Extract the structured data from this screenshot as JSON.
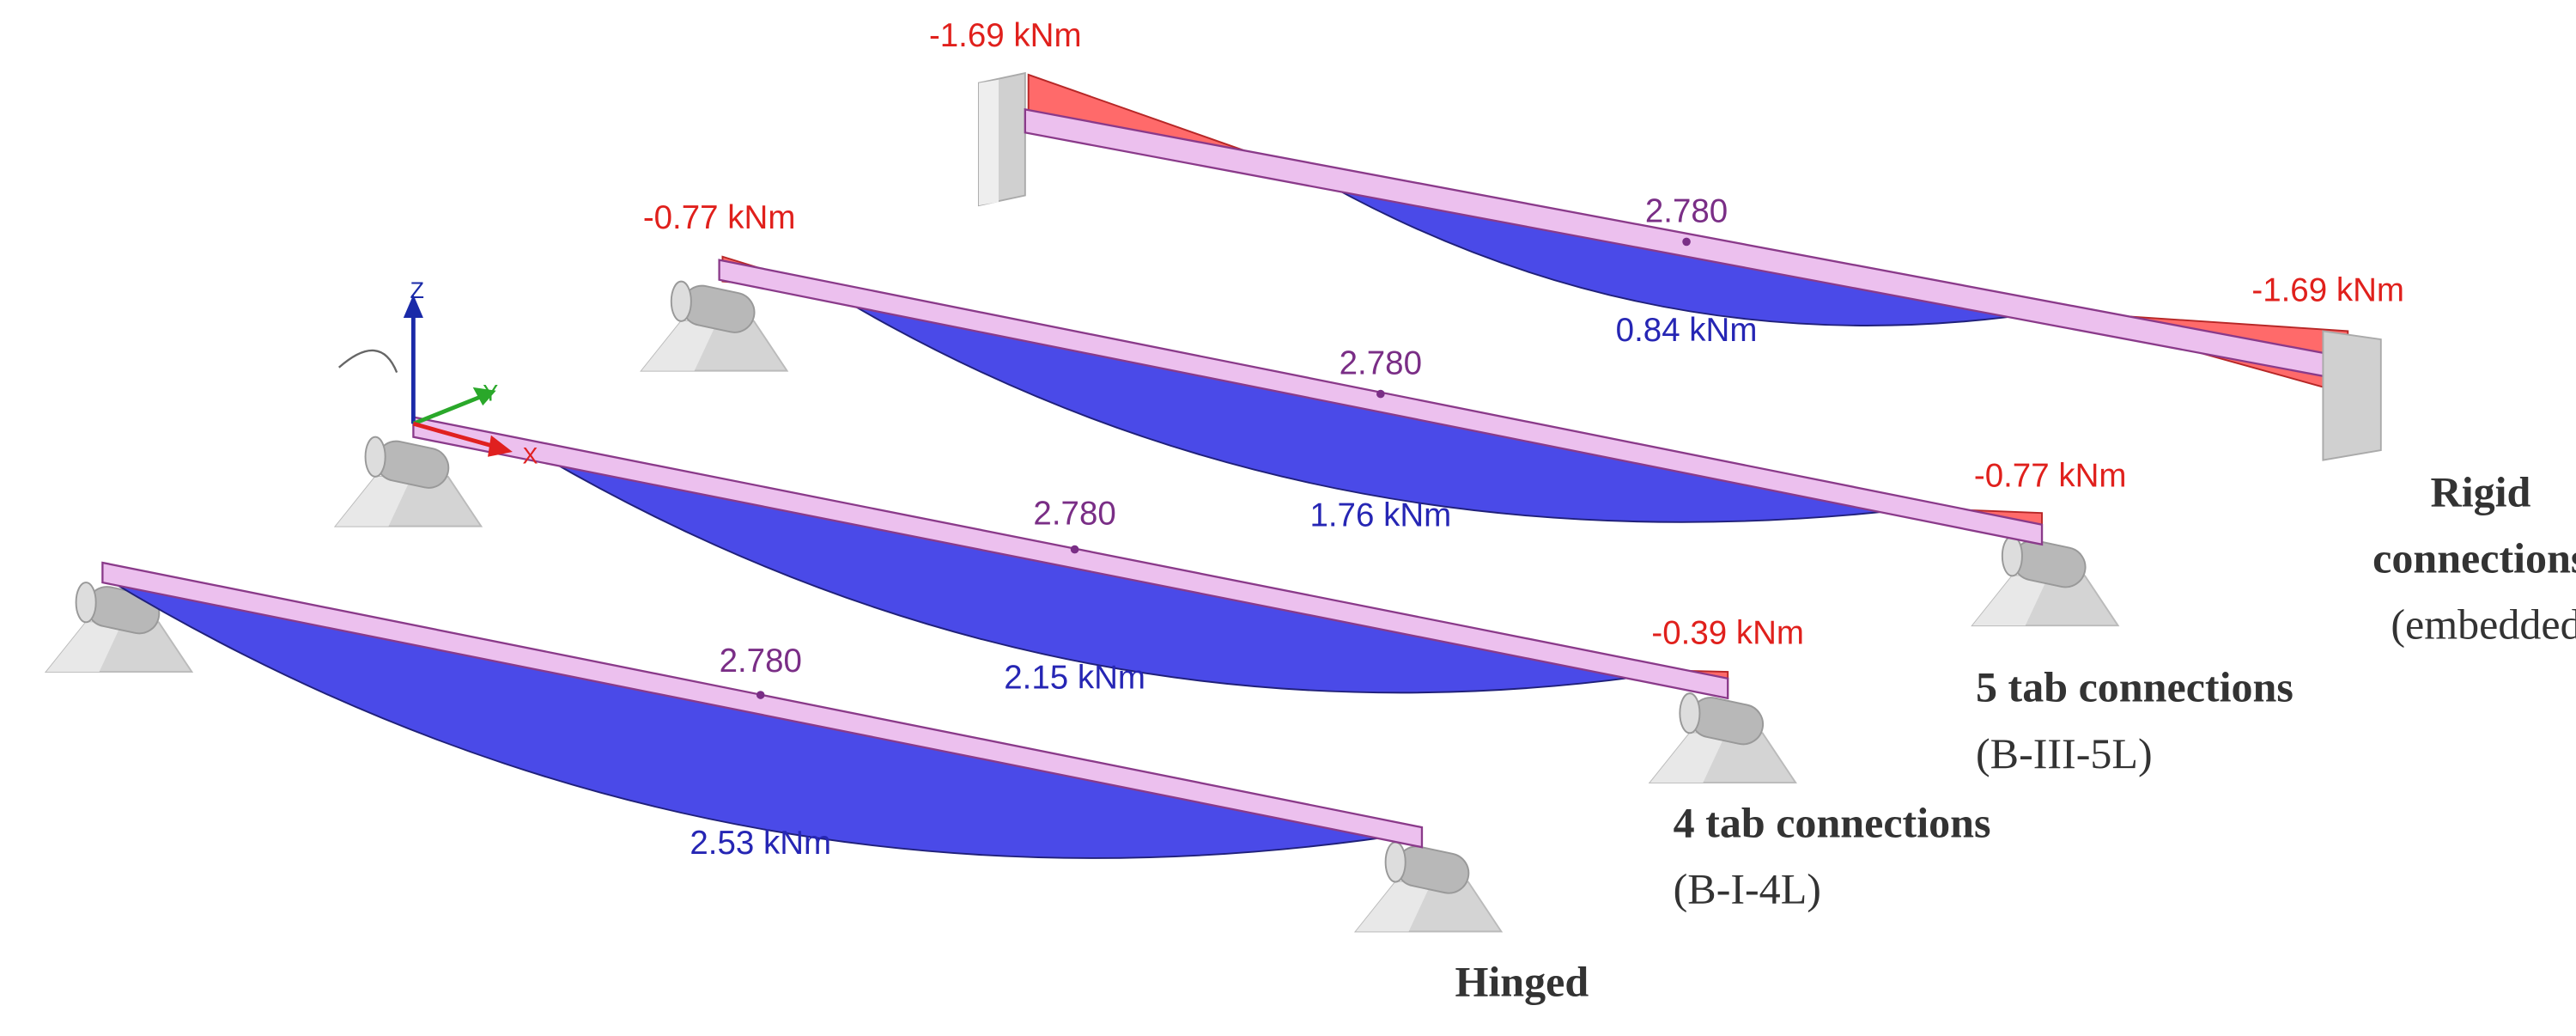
{
  "axes": {
    "z": "Z",
    "y": "Y",
    "x": "X"
  },
  "beams": [
    {
      "name": "Rigid",
      "name_line2": "connections",
      "note": "(embedded)",
      "length": "2.780",
      "midspan_moment": "0.84 kNm",
      "left_moment": "-1.69 kNm",
      "right_moment": "-1.69 kNm"
    },
    {
      "name": "5 tab connections",
      "note": "(B-III-5L)",
      "length": "2.780",
      "midspan_moment": "1.76 kNm",
      "left_moment": "-0.77 kNm",
      "right_moment": "-0.77 kNm"
    },
    {
      "name": "4 tab connections",
      "note": "(B-I-4L)",
      "length": "2.780",
      "midspan_moment": "2.15 kNm",
      "right_moment": "-0.39 kNm"
    },
    {
      "name": "Hinged",
      "length": "2.780",
      "midspan_moment": "2.53 kNm"
    }
  ]
}
